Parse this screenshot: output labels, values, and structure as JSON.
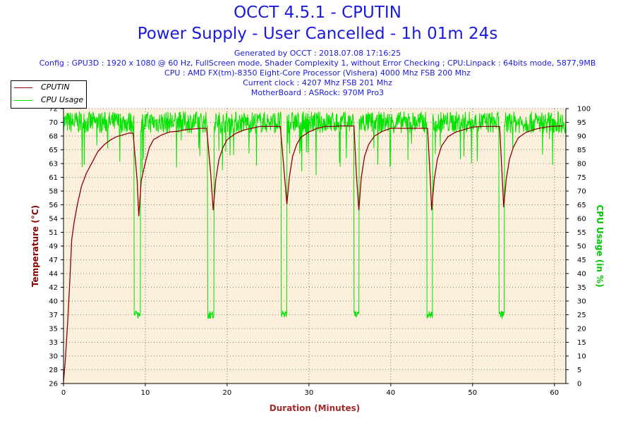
{
  "header": {
    "title": "OCCT 4.5.1 - CPUTIN",
    "subtitle": "Power Supply - User Cancelled - 1h 01m 24s",
    "generated": "Generated by OCCT : 2018.07.08 17:16:25",
    "config": "Config : GPU3D : 1920 x 1080 @ 60 Hz, FullScreen mode, Shader Complexity 1, without Error Checking ; CPU:Linpack : 64bits mode, 5877,9MB",
    "cpu": "CPU : AMD FX(tm)-8350 Eight-Core Processor (Vishera) 4000 Mhz FSB 200 Mhz",
    "clock": "Current clock : 4207 Mhz FSB 201 Mhz",
    "motherboard": "MotherBoard : ASRock: 970M Pro3"
  },
  "colors": {
    "temp": "#8b0000",
    "cpu": "#00e400",
    "plot_bg": "#fcefdc",
    "title": "#1a1adc",
    "xlabel": "#a52a2a",
    "ylabel_left": "#8b0000",
    "ylabel_right": "#00c800"
  },
  "chart_data": {
    "type": "line",
    "xlabel": "Duration (Minutes)",
    "ylabel_left": "Temperature (°C)",
    "ylabel_right": "CPU Usage (in %)",
    "xlim": [
      0,
      61.4
    ],
    "ylim_left": [
      26,
      72
    ],
    "ylim_right": [
      0,
      100
    ],
    "x_ticks": [
      0,
      10,
      20,
      30,
      40,
      50,
      60
    ],
    "y_left_ticks": [
      26,
      28,
      30,
      33,
      35,
      37,
      40,
      42,
      44,
      47,
      49,
      51,
      54,
      56,
      58,
      61,
      63,
      65,
      68,
      70,
      72
    ],
    "y_right_ticks": [
      0,
      5,
      10,
      15,
      20,
      25,
      30,
      35,
      40,
      45,
      50,
      55,
      60,
      65,
      70,
      75,
      80,
      85,
      90,
      95,
      100
    ],
    "grid": true,
    "legend_position": "top-left",
    "series": [
      {
        "name": "CPUTIN",
        "axis": "left",
        "points": [
          [
            0,
            26.3
          ],
          [
            0.2,
            29.5
          ],
          [
            0.5,
            36
          ],
          [
            0.8,
            44
          ],
          [
            1,
            50
          ],
          [
            1.3,
            53
          ],
          [
            1.7,
            56
          ],
          [
            2.2,
            59
          ],
          [
            2.8,
            61.2
          ],
          [
            3.5,
            63
          ],
          [
            4.2,
            64.8
          ],
          [
            5,
            66
          ],
          [
            5.8,
            66.8
          ],
          [
            6.5,
            67.3
          ],
          [
            7.3,
            67.6
          ],
          [
            8,
            67.9
          ],
          [
            8.5,
            67.9
          ],
          [
            9,
            60
          ],
          [
            9.2,
            54
          ],
          [
            9.5,
            60
          ],
          [
            10,
            63
          ],
          [
            10.5,
            65.5
          ],
          [
            11,
            66.8
          ],
          [
            12,
            67.6
          ],
          [
            13,
            68.1
          ],
          [
            14,
            68.2
          ],
          [
            15,
            68.5
          ],
          [
            17,
            68.7
          ],
          [
            17.5,
            68.7
          ],
          [
            18,
            61
          ],
          [
            18.3,
            55
          ],
          [
            18.6,
            60
          ],
          [
            19,
            63.5
          ],
          [
            19.5,
            65.5
          ],
          [
            20,
            66.8
          ],
          [
            21,
            67.8
          ],
          [
            22,
            68.4
          ],
          [
            23,
            68.7
          ],
          [
            24,
            69
          ],
          [
            25,
            69
          ],
          [
            26,
            69
          ],
          [
            26.5,
            69
          ],
          [
            27,
            61
          ],
          [
            27.3,
            56
          ],
          [
            27.6,
            60.5
          ],
          [
            28,
            64
          ],
          [
            28.5,
            66
          ],
          [
            29,
            67.2
          ],
          [
            30,
            68.1
          ],
          [
            31,
            68.7
          ],
          [
            32,
            69
          ],
          [
            33,
            69
          ],
          [
            34,
            69.1
          ],
          [
            35.5,
            69.1
          ],
          [
            35.8,
            61
          ],
          [
            36.1,
            55
          ],
          [
            36.4,
            60.5
          ],
          [
            36.8,
            64
          ],
          [
            37.3,
            66
          ],
          [
            38,
            67.4
          ],
          [
            39,
            68.2
          ],
          [
            40,
            68.7
          ],
          [
            41,
            68.7
          ],
          [
            43,
            68.7
          ],
          [
            44.5,
            68.7
          ],
          [
            44.8,
            61
          ],
          [
            45,
            55
          ],
          [
            45.3,
            60
          ],
          [
            45.7,
            63.5
          ],
          [
            46.2,
            65.7
          ],
          [
            47,
            67.3
          ],
          [
            48,
            68.1
          ],
          [
            49,
            68.5
          ],
          [
            50,
            68.9
          ],
          [
            51,
            69
          ],
          [
            53.3,
            69
          ],
          [
            53.6,
            61
          ],
          [
            53.8,
            55.5
          ],
          [
            54.1,
            60
          ],
          [
            54.5,
            63.5
          ],
          [
            55,
            65.6
          ],
          [
            55.6,
            67.1
          ],
          [
            56.5,
            68
          ],
          [
            57.5,
            68.5
          ],
          [
            58.5,
            68.8
          ],
          [
            59.5,
            69
          ],
          [
            61,
            69.1
          ]
        ]
      },
      {
        "name": "CPU Usage",
        "axis": "right",
        "baseline": 95,
        "noise": 4,
        "drops": [
          [
            8.6,
            9.4,
            25
          ],
          [
            17.6,
            18.4,
            25
          ],
          [
            26.6,
            27.3,
            25
          ],
          [
            35.5,
            36.1,
            25
          ],
          [
            44.4,
            45.1,
            25
          ],
          [
            53.2,
            53.9,
            25
          ]
        ]
      }
    ]
  },
  "legend": {
    "items": [
      {
        "label": "CPUTIN"
      },
      {
        "label": "CPU Usage"
      }
    ]
  }
}
